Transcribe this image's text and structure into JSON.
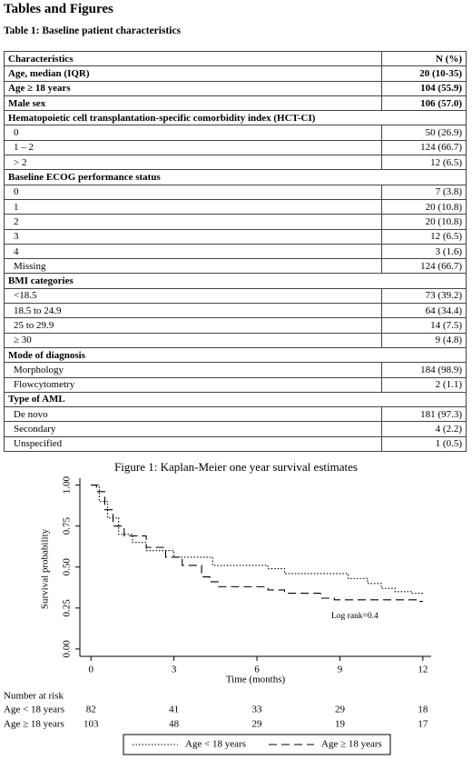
{
  "title": "Tables and Figures",
  "table": {
    "caption": "Table 1: Baseline patient characteristics",
    "header": [
      "Characteristics",
      "N (%)"
    ],
    "summary": [
      [
        "Age, median (IQR)",
        "20 (10-35)"
      ],
      [
        "Age ≥ 18 years",
        "104 (55.9)"
      ],
      [
        "Male sex",
        "106 (57.0)"
      ]
    ],
    "sections": [
      {
        "title": "Hematopoietic cell transplantation-specific comorbidity index (HCT-CI)",
        "rows": [
          [
            "0",
            "50 (26.9)"
          ],
          [
            "1 – 2",
            "124 (66.7)"
          ],
          [
            "> 2",
            "12 (6.5)"
          ]
        ]
      },
      {
        "title": "Baseline ECOG performance status",
        "rows": [
          [
            "0",
            "7 (3.8)"
          ],
          [
            "1",
            "20 (10.8)"
          ],
          [
            "2",
            "20 (10.8)"
          ],
          [
            "3",
            "12 (6.5)"
          ],
          [
            "4",
            "3 (1.6)"
          ],
          [
            "Missing",
            "124 (66.7)"
          ]
        ]
      },
      {
        "title": "BMI categories",
        "rows": [
          [
            "<18.5",
            "73 (39.2)"
          ],
          [
            "18.5 to 24.9",
            "64 (34.4)"
          ],
          [
            "25 to 29.9",
            "14 (7.5)"
          ],
          [
            "≥ 30",
            "9 (4.8)"
          ]
        ]
      },
      {
        "title": "Mode of diagnosis",
        "rows": [
          [
            "Morphology",
            "184 (98.9)"
          ],
          [
            "Flowcytometry",
            "2 (1.1)"
          ]
        ]
      },
      {
        "title": "Type of AML",
        "rows": [
          [
            "De novo",
            "181 (97.3)"
          ],
          [
            "Secondary",
            "4 (2.2)"
          ],
          [
            "Unspecified",
            "1 (0.5)"
          ]
        ]
      }
    ]
  },
  "chart_data": {
    "type": "line",
    "title": "Figure 1: Kaplan-Meier one year survival estimates",
    "x_label": "Time (months)",
    "y_label": "Survival probability",
    "xlim": [
      -0.4,
      12.3
    ],
    "xticks": [
      0,
      3,
      6,
      9,
      12
    ],
    "ylim": [
      -0.045,
      1.02
    ],
    "yticks": [
      {
        "value": 0,
        "label": "0.00"
      },
      {
        "value": 0.25,
        "label": "0.25"
      },
      {
        "value": 0.5,
        "label": "0.50"
      },
      {
        "value": 0.75,
        "label": "0.75"
      },
      {
        "value": 1,
        "label": "1.00"
      }
    ],
    "annotation": "Log rank=0.4",
    "series": [
      {
        "name": "Age < 18 years",
        "color": "#000000",
        "dash": "1.5,2",
        "x": [
          0,
          0.1,
          0.3,
          0.3,
          0.6,
          0.6,
          1,
          1,
          1.5,
          1.5,
          2,
          2,
          3,
          3,
          4.4,
          4.4,
          6.4,
          6.4,
          7,
          7,
          9.3,
          9.3,
          10,
          10,
          10.5,
          10.5,
          11,
          11,
          11.6,
          11.6,
          12
        ],
        "values": [
          1,
          1,
          1,
          0.9,
          0.9,
          0.8,
          0.8,
          0.7,
          0.7,
          0.65,
          0.65,
          0.6,
          0.6,
          0.56,
          0.56,
          0.51,
          0.51,
          0.49,
          0.49,
          0.46,
          0.46,
          0.43,
          0.43,
          0.4,
          0.4,
          0.37,
          0.37,
          0.35,
          0.35,
          0.34,
          0.34
        ]
      },
      {
        "name": "Age ≥ 18 years",
        "color": "#000000",
        "dash": "9,5",
        "x": [
          0,
          0.2,
          0.2,
          0.5,
          0.5,
          0.8,
          0.8,
          1.2,
          1.2,
          2,
          2,
          2.7,
          2.7,
          3.3,
          3.3,
          4,
          4,
          4.3,
          4.3,
          4.6,
          4.6,
          6.4,
          6.4,
          7,
          7,
          8.3,
          8.3,
          8.8,
          8.8,
          11.8,
          11.8,
          12
        ],
        "values": [
          1,
          1,
          0.96,
          0.96,
          0.85,
          0.85,
          0.75,
          0.75,
          0.69,
          0.69,
          0.62,
          0.62,
          0.56,
          0.56,
          0.51,
          0.51,
          0.44,
          0.44,
          0.41,
          0.41,
          0.38,
          0.38,
          0.36,
          0.36,
          0.34,
          0.34,
          0.31,
          0.31,
          0.3,
          0.3,
          0.29,
          0.29
        ]
      }
    ],
    "risk_table": {
      "title": "Number at risk",
      "rows": [
        {
          "label": "Age < 18 years",
          "values": [
            82,
            41,
            33,
            29,
            18
          ]
        },
        {
          "label": "Age ≥ 18 years",
          "values": [
            103,
            48,
            29,
            19,
            17
          ]
        }
      ]
    }
  }
}
